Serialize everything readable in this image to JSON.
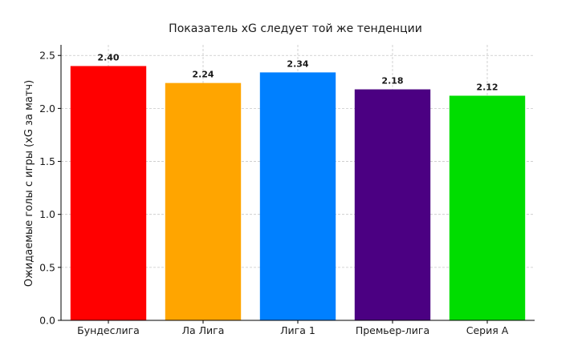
{
  "chart_data": {
    "type": "bar",
    "title": "Показатель xG следует той же тенденции",
    "xlabel": "",
    "ylabel": "Ожидаемые голы с игры (xG за матч)",
    "categories": [
      "Бундеслига",
      "Ла Лига",
      "Лига 1",
      "Премьер-лига",
      "Серия А"
    ],
    "values": [
      2.4,
      2.24,
      2.34,
      2.18,
      2.12
    ],
    "value_labels": [
      "2.40",
      "2.24",
      "2.34",
      "2.18",
      "2.12"
    ],
    "colors": [
      "#ff0000",
      "#ffa500",
      "#0080ff",
      "#4b0082",
      "#00dd00"
    ],
    "ylim": [
      0,
      2.6
    ],
    "yticks": [
      0.0,
      0.5,
      1.0,
      1.5,
      2.0,
      2.5
    ],
    "ytick_labels": [
      "0.0",
      "0.5",
      "1.0",
      "1.5",
      "2.0",
      "2.5"
    ],
    "grid": true
  }
}
